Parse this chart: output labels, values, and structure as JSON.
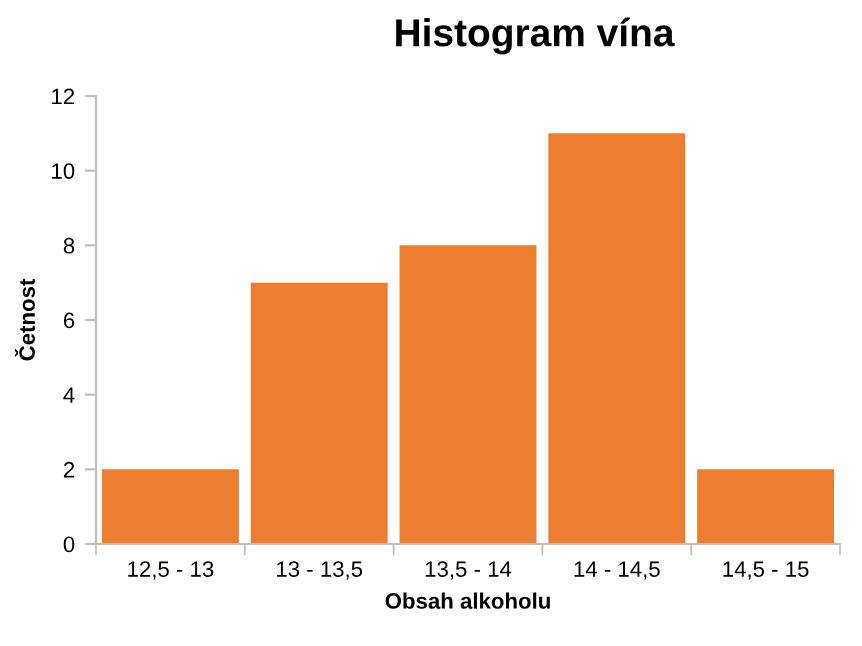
{
  "chart_data": {
    "type": "bar",
    "title": "Histogram vína",
    "xlabel": "Obsah alkoholu",
    "ylabel": "Četnost",
    "categories": [
      "12,5 - 13",
      "13 - 13,5",
      "13,5 - 14",
      "14 - 14,5",
      "14,5 - 15"
    ],
    "values": [
      2,
      7,
      8,
      11,
      2
    ],
    "color": "#ed7d31",
    "ylim": [
      0,
      12
    ],
    "yticks": [
      0,
      2,
      4,
      6,
      8,
      10,
      12
    ],
    "grid": false,
    "legend": false
  }
}
